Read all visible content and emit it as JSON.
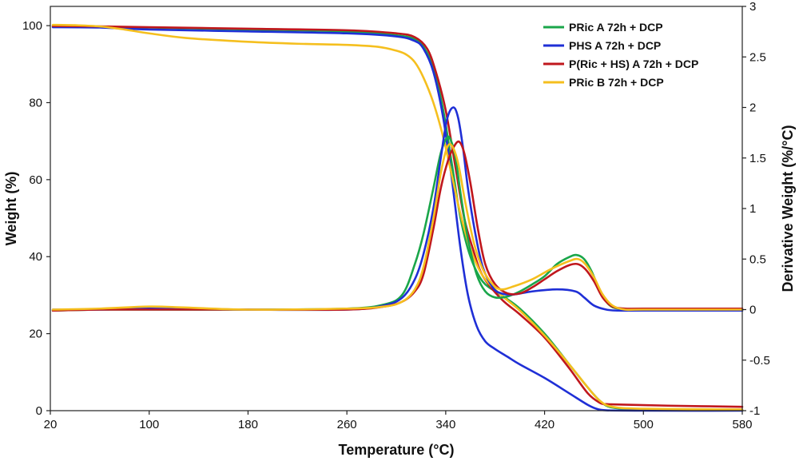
{
  "chart_data": {
    "type": "line",
    "xlabel": "Temperature (°C)",
    "ylabel_left": "Weight (%)",
    "ylabel_right": "Derivative Weight (%/°C)",
    "xlim": [
      20,
      580
    ],
    "ylim_left": [
      0,
      105
    ],
    "ylim_right": [
      -1,
      3
    ],
    "x_ticks": [
      20,
      100,
      180,
      260,
      340,
      420,
      500,
      580
    ],
    "x_tick_labels": [
      "20",
      "100",
      "180",
      "260",
      "340",
      "420",
      "500",
      "580"
    ],
    "y_left_ticks": [
      0,
      20,
      40,
      60,
      80,
      100
    ],
    "y_left_tick_labels": [
      "0",
      "20",
      "40",
      "60",
      "80",
      "100"
    ],
    "y_right_ticks": [
      -1,
      -0.5,
      0,
      0.5,
      1,
      1.5,
      2,
      2.5,
      3
    ],
    "y_right_tick_labels": [
      "-1",
      "-0.5",
      "0",
      "0.5",
      "1",
      "1.5",
      "2",
      "2.5",
      "3"
    ],
    "grid": false,
    "legend_position": "top-right",
    "legend": [
      {
        "name": "PRic A 72h + DCP",
        "color": "#1aa64a"
      },
      {
        "name": "PHS A 72h + DCP",
        "color": "#1f2fd6"
      },
      {
        "name": "P(Ric + HS) A 72h + DCP",
        "color": "#c0171d"
      },
      {
        "name": "PRic B 72h + DCP",
        "color": "#f5bf1e"
      }
    ],
    "series": [
      {
        "name": "PRic A 72h + DCP",
        "curve": "weight",
        "axis": "left",
        "color": "#1aa64a",
        "x": [
          22,
          60,
          100,
          180,
          260,
          300,
          315,
          322,
          330,
          338,
          345,
          352,
          360,
          370,
          385,
          400,
          420,
          440,
          455,
          465,
          475,
          500,
          540,
          580
        ],
        "y": [
          99.8,
          99.7,
          99.5,
          99.0,
          98.5,
          97.5,
          96.5,
          94.5,
          89.0,
          78.0,
          64.0,
          50.0,
          40.0,
          33.5,
          30.0,
          26.5,
          20.0,
          12.0,
          6.0,
          2.5,
          0.8,
          0.3,
          0.2,
          0.1
        ]
      },
      {
        "name": "PHS A 72h + DCP",
        "curve": "weight",
        "axis": "left",
        "color": "#1f2fd6",
        "x": [
          22,
          60,
          100,
          180,
          260,
          300,
          315,
          322,
          330,
          338,
          345,
          352,
          358,
          365,
          372,
          380,
          390,
          400,
          420,
          440,
          455,
          462,
          470,
          500,
          580
        ],
        "y": [
          99.6,
          99.5,
          99.0,
          98.5,
          98.0,
          97.2,
          96.0,
          94.0,
          88.0,
          76.0,
          60.0,
          42.0,
          30.0,
          22.0,
          18.0,
          16.0,
          14.0,
          12.0,
          8.5,
          4.5,
          1.5,
          0.5,
          0.1,
          0.0,
          0.0
        ]
      },
      {
        "name": "P(Ric + HS) A 72h + DCP",
        "curve": "weight",
        "axis": "left",
        "color": "#c0171d",
        "x": [
          22,
          60,
          100,
          180,
          260,
          300,
          315,
          325,
          332,
          340,
          348,
          355,
          362,
          370,
          385,
          400,
          420,
          440,
          455,
          465,
          470,
          480,
          520,
          580
        ],
        "y": [
          99.9,
          99.8,
          99.6,
          99.2,
          98.8,
          98.0,
          97.0,
          94.0,
          88.0,
          78.0,
          63.0,
          50.0,
          42.0,
          35.0,
          29.0,
          25.0,
          19.0,
          11.0,
          4.5,
          2.0,
          1.7,
          1.6,
          1.3,
          1.0
        ]
      },
      {
        "name": "PRic B 72h + DCP",
        "curve": "weight",
        "axis": "left",
        "color": "#f5bf1e",
        "x": [
          22,
          40,
          60,
          80,
          100,
          130,
          180,
          220,
          260,
          285,
          300,
          308,
          315,
          322,
          330,
          338,
          345,
          352,
          360,
          370,
          385,
          400,
          420,
          440,
          455,
          465,
          475,
          500,
          580
        ],
        "y": [
          100.2,
          100.1,
          99.8,
          99.0,
          98.0,
          96.8,
          95.8,
          95.3,
          95.0,
          94.5,
          93.5,
          92.5,
          90.5,
          86.5,
          80.0,
          71.0,
          61.0,
          51.0,
          42.0,
          35.0,
          30.0,
          26.0,
          19.5,
          12.0,
          6.0,
          2.5,
          1.0,
          0.5,
          0.3
        ]
      },
      {
        "name": "PRic A 72h + DCP",
        "curve": "derivative",
        "axis": "right",
        "color": "#1aa64a",
        "x": [
          22,
          60,
          100,
          180,
          260,
          290,
          305,
          315,
          322,
          330,
          336,
          341,
          344,
          348,
          352,
          358,
          365,
          372,
          380,
          390,
          400,
          410,
          420,
          430,
          440,
          446,
          452,
          458,
          465,
          472,
          480,
          500,
          580
        ],
        "y": [
          -0.01,
          0.0,
          0.0,
          0.0,
          0.01,
          0.05,
          0.15,
          0.45,
          0.75,
          1.2,
          1.55,
          1.7,
          1.68,
          1.5,
          1.15,
          0.7,
          0.35,
          0.18,
          0.12,
          0.13,
          0.18,
          0.25,
          0.33,
          0.45,
          0.52,
          0.54,
          0.5,
          0.38,
          0.18,
          0.05,
          0.01,
          0.0,
          0.0
        ]
      },
      {
        "name": "PHS A 72h + DCP",
        "curve": "derivative",
        "axis": "right",
        "color": "#1f2fd6",
        "x": [
          22,
          60,
          100,
          180,
          260,
          290,
          305,
          315,
          322,
          330,
          336,
          341,
          346,
          350,
          354,
          358,
          364,
          370,
          378,
          385,
          395,
          410,
          430,
          445,
          452,
          460,
          470,
          480,
          500,
          580
        ],
        "y": [
          0.0,
          0.0,
          0.01,
          0.0,
          0.0,
          0.04,
          0.12,
          0.3,
          0.55,
          1.0,
          1.5,
          1.88,
          2.0,
          1.9,
          1.6,
          1.2,
          0.75,
          0.42,
          0.22,
          0.16,
          0.15,
          0.18,
          0.2,
          0.18,
          0.12,
          0.04,
          0.0,
          -0.01,
          -0.01,
          -0.01
        ]
      },
      {
        "name": "P(Ric + HS) A 72h + DCP",
        "curve": "derivative",
        "axis": "right",
        "color": "#c0171d",
        "x": [
          22,
          60,
          100,
          180,
          260,
          290,
          305,
          315,
          322,
          330,
          336,
          342,
          347,
          351,
          355,
          360,
          366,
          372,
          380,
          390,
          400,
          410,
          420,
          430,
          440,
          447,
          453,
          460,
          467,
          475,
          485,
          500,
          580
        ],
        "y": [
          -0.01,
          0.0,
          0.0,
          0.0,
          0.0,
          0.03,
          0.08,
          0.18,
          0.35,
          0.8,
          1.2,
          1.48,
          1.62,
          1.66,
          1.55,
          1.25,
          0.8,
          0.45,
          0.25,
          0.16,
          0.16,
          0.22,
          0.3,
          0.38,
          0.44,
          0.45,
          0.4,
          0.28,
          0.12,
          0.03,
          0.01,
          0.01,
          0.01
        ]
      },
      {
        "name": "PRic B 72h + DCP",
        "curve": "derivative",
        "axis": "right",
        "color": "#f5bf1e",
        "x": [
          22,
          60,
          100,
          130,
          180,
          260,
          290,
          305,
          315,
          322,
          330,
          336,
          341,
          345,
          350,
          356,
          363,
          370,
          378,
          385,
          395,
          410,
          425,
          440,
          447,
          453,
          460,
          467,
          475,
          485,
          500,
          580
        ],
        "y": [
          0.0,
          0.01,
          0.03,
          0.02,
          0.0,
          0.01,
          0.03,
          0.08,
          0.2,
          0.42,
          0.9,
          1.35,
          1.6,
          1.62,
          1.45,
          1.05,
          0.65,
          0.4,
          0.25,
          0.2,
          0.23,
          0.3,
          0.4,
          0.48,
          0.5,
          0.45,
          0.32,
          0.15,
          0.04,
          0.0,
          0.0,
          0.0
        ]
      }
    ]
  }
}
